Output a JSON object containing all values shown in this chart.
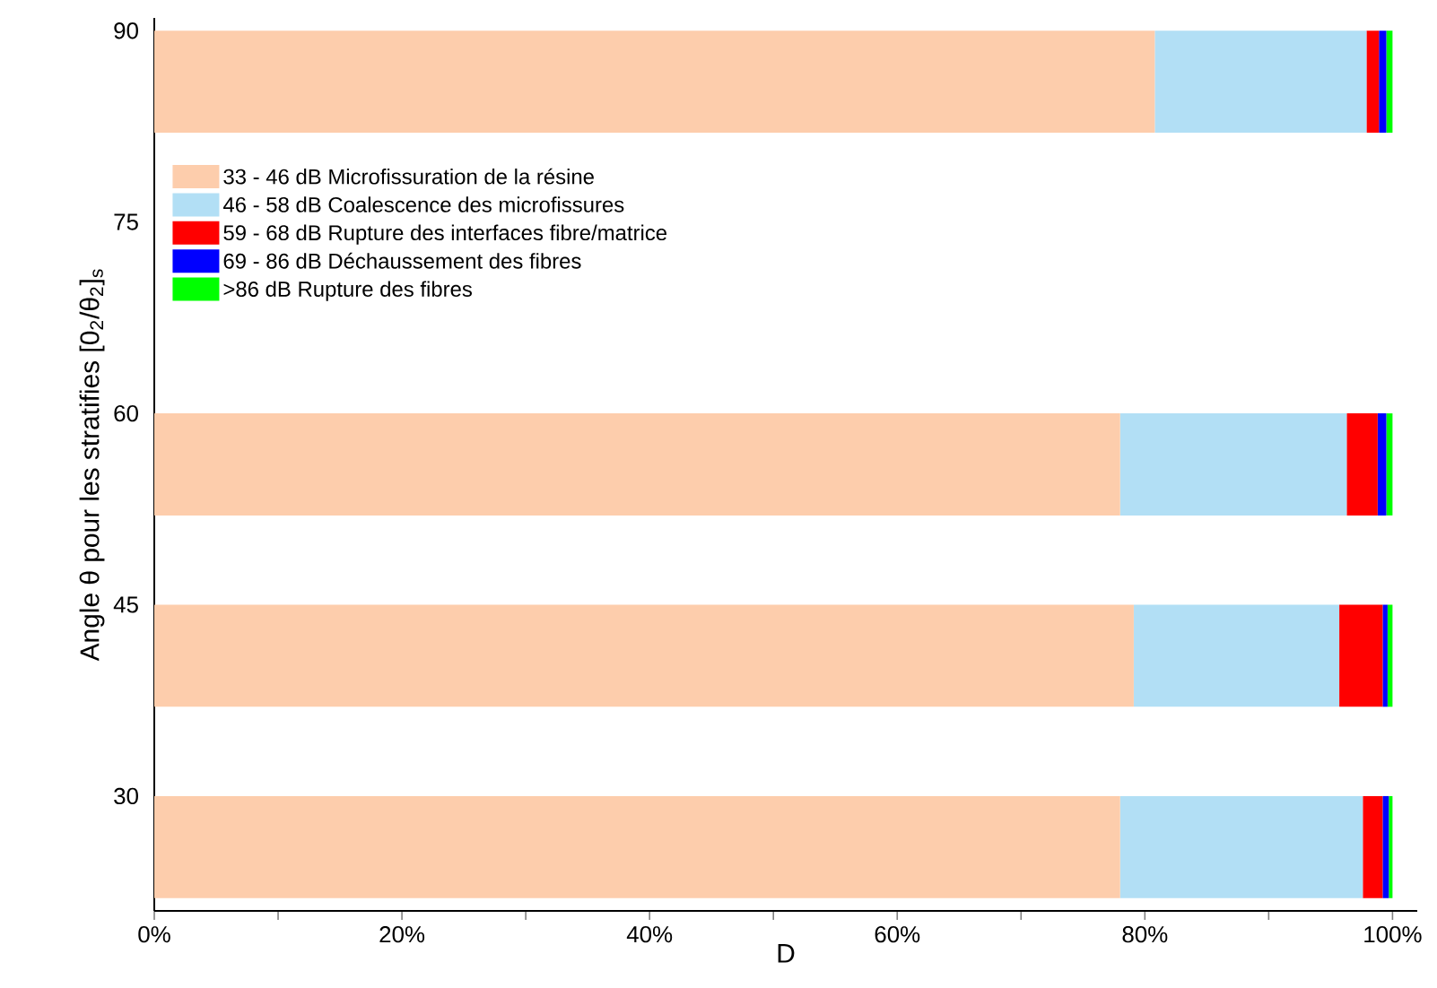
{
  "chart_data": {
    "type": "bar",
    "orientation": "horizontal",
    "stacked": true,
    "xlabel": "D",
    "ylabel": "Angle θ pour les stratifies [0$_{2}$/θ$_{2}$]$_{s}$",
    "x": [
      86,
      56,
      41,
      26
    ],
    "series": [
      {
        "name": "33 - 46 dB    Microfissuration de la résine",
        "color": "#fdcdac",
        "values": [
          80.8,
          78.0,
          79.1,
          78.0
        ]
      },
      {
        "name": "46 - 58 dB    Coalescence des microfissures",
        "color": "#b2dff5",
        "values": [
          17.1,
          18.3,
          16.6,
          19.6
        ]
      },
      {
        "name": "59 - 68 dB    Rupture des interfaces fibre/matrice",
        "color": "#ff0000",
        "values": [
          1.0,
          2.5,
          3.5,
          1.6
        ]
      },
      {
        "name": "69 - 86 dB    Déchaussement des fibres",
        "color": "#0000ff",
        "values": [
          0.6,
          0.7,
          0.4,
          0.5
        ]
      },
      {
        "name": ">86 dB           Rupture des fibres",
        "color": "#00ff00",
        "values": [
          0.5,
          0.5,
          0.4,
          0.3
        ]
      }
    ],
    "xlim": [
      0,
      102
    ],
    "ylim": [
      21,
      91
    ],
    "xticks": [
      {
        "value": 0,
        "label": "0%"
      },
      {
        "value": 10,
        "label": null
      },
      {
        "value": 20,
        "label": "20%"
      },
      {
        "value": 30,
        "label": null
      },
      {
        "value": 40,
        "label": "40%"
      },
      {
        "value": 50,
        "label": null
      },
      {
        "value": 60,
        "label": "60%"
      },
      {
        "value": 70,
        "label": null
      },
      {
        "value": 80,
        "label": "80%"
      },
      {
        "value": 90,
        "label": null
      },
      {
        "value": 100,
        "label": "100%"
      }
    ],
    "yticks": [
      30,
      45,
      60,
      75,
      90
    ],
    "legend": "top left"
  }
}
